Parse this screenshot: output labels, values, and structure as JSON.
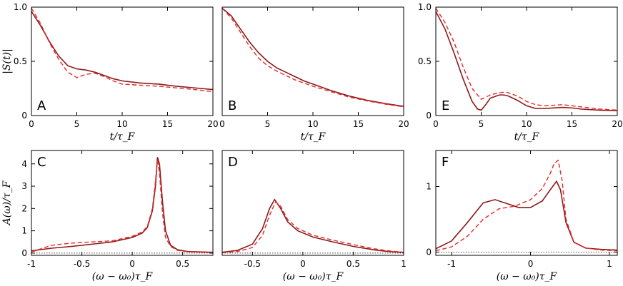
{
  "chart_data": [
    {
      "panel": "A",
      "type": "line",
      "xlabel": "t/τ_F",
      "ylabel": "|S(t)|",
      "xlim": [
        0,
        20
      ],
      "ylim": [
        0,
        1.0
      ],
      "xticks": [
        0,
        5,
        10,
        15,
        20
      ],
      "xticklabels": [
        "0",
        "5",
        "10",
        "15",
        "20"
      ],
      "yticks": [
        0,
        0.5,
        1.0
      ],
      "yticklabels": [
        "0",
        "0.5",
        "1.0"
      ],
      "series": [
        {
          "style": "solid",
          "color": "#8b1a1a",
          "x": [
            0,
            1,
            2,
            3,
            4,
            5,
            6,
            7,
            8,
            9,
            10,
            12,
            14,
            16,
            18,
            20
          ],
          "y": [
            0.96,
            0.83,
            0.68,
            0.55,
            0.46,
            0.43,
            0.42,
            0.4,
            0.37,
            0.34,
            0.32,
            0.3,
            0.29,
            0.27,
            0.255,
            0.24
          ]
        },
        {
          "style": "dashed",
          "color": "#e8262a",
          "x": [
            0,
            1,
            2,
            3,
            4,
            5,
            6,
            7,
            8,
            9,
            10,
            12,
            14,
            16,
            18,
            20
          ],
          "y": [
            0.99,
            0.85,
            0.67,
            0.52,
            0.4,
            0.35,
            0.38,
            0.39,
            0.36,
            0.32,
            0.29,
            0.28,
            0.27,
            0.255,
            0.24,
            0.22
          ]
        }
      ]
    },
    {
      "panel": "B",
      "type": "line",
      "xlabel": "t/τ_F",
      "ylabel": "",
      "xlim": [
        0,
        20
      ],
      "ylim": [
        0,
        1.0
      ],
      "xticks": [
        0,
        5,
        10,
        15,
        20
      ],
      "xticklabels": [
        "0",
        "5",
        "10",
        "15",
        "20"
      ],
      "yticks": [],
      "yticklabels": [],
      "series": [
        {
          "style": "solid",
          "color": "#8b1a1a",
          "x": [
            0,
            1,
            2,
            3,
            4,
            5,
            6,
            7,
            8,
            9,
            10,
            12,
            14,
            16,
            18,
            20
          ],
          "y": [
            0.99,
            0.92,
            0.8,
            0.68,
            0.58,
            0.5,
            0.44,
            0.4,
            0.36,
            0.32,
            0.29,
            0.23,
            0.18,
            0.14,
            0.11,
            0.085
          ]
        },
        {
          "style": "dashed",
          "color": "#e8262a",
          "x": [
            0,
            1,
            2,
            3,
            4,
            5,
            6,
            7,
            8,
            9,
            10,
            12,
            14,
            16,
            18,
            20
          ],
          "y": [
            0.99,
            0.9,
            0.77,
            0.64,
            0.53,
            0.46,
            0.41,
            0.37,
            0.33,
            0.3,
            0.27,
            0.22,
            0.17,
            0.135,
            0.105,
            0.08
          ]
        }
      ]
    },
    {
      "panel": "E",
      "type": "line",
      "xlabel": "t/τ_F",
      "ylabel": "",
      "xlim": [
        0,
        20
      ],
      "ylim": [
        0,
        1.0
      ],
      "xticks": [
        0,
        5,
        10,
        15,
        20
      ],
      "xticklabels": [
        "0",
        "5",
        "10",
        "15",
        "20"
      ],
      "yticks": [
        0,
        0.5,
        1.0
      ],
      "yticklabels": [
        "0",
        "0.5",
        "1.0"
      ],
      "series": [
        {
          "style": "solid",
          "color": "#8b1a1a",
          "x": [
            0,
            1,
            2,
            3,
            4,
            4.6,
            5,
            5.5,
            6,
            7,
            7.5,
            8,
            9,
            10,
            11,
            12,
            13,
            14,
            15,
            16,
            18,
            20
          ],
          "y": [
            0.96,
            0.8,
            0.58,
            0.34,
            0.13,
            0.06,
            0.05,
            0.1,
            0.16,
            0.19,
            0.19,
            0.18,
            0.14,
            0.09,
            0.065,
            0.065,
            0.07,
            0.075,
            0.07,
            0.06,
            0.05,
            0.045
          ]
        },
        {
          "style": "dashed",
          "color": "#e8262a",
          "x": [
            0,
            1,
            2,
            3,
            4,
            5,
            6,
            7,
            7.5,
            8,
            9,
            10,
            11,
            12,
            13,
            14,
            15,
            16,
            18,
            20
          ],
          "y": [
            0.99,
            0.86,
            0.68,
            0.45,
            0.25,
            0.15,
            0.19,
            0.21,
            0.215,
            0.21,
            0.18,
            0.13,
            0.1,
            0.09,
            0.095,
            0.1,
            0.09,
            0.08,
            0.06,
            0.05
          ]
        }
      ]
    },
    {
      "panel": "C",
      "type": "line",
      "xlabel": "(ω − ω₀)τ_F",
      "ylabel": "A(ω)/τ_F",
      "xlim": [
        -1,
        0.8
      ],
      "ylim": [
        -0.1,
        4.6
      ],
      "xticks": [
        -1,
        -0.5,
        0,
        0.5
      ],
      "xticklabels": [
        "-1",
        "-0.5",
        "0",
        "0.5"
      ],
      "yticks": [
        0,
        1,
        2,
        3,
        4
      ],
      "yticklabels": [
        "0",
        "1",
        "2",
        "3",
        "4"
      ],
      "series": [
        {
          "style": "solid",
          "color": "#8b1a1a",
          "x": [
            -1,
            -0.8,
            -0.6,
            -0.4,
            -0.2,
            0,
            0.1,
            0.15,
            0.2,
            0.23,
            0.25,
            0.27,
            0.3,
            0.33,
            0.38,
            0.45,
            0.55,
            0.7,
            0.8
          ],
          "y": [
            0.1,
            0.22,
            0.3,
            0.4,
            0.5,
            0.7,
            0.9,
            1.15,
            1.9,
            3.0,
            4.3,
            4.0,
            2.3,
            1.0,
            0.35,
            0.15,
            0.07,
            0.05,
            0.04
          ]
        },
        {
          "style": "dashed",
          "color": "#e8262a",
          "x": [
            -1,
            -0.8,
            -0.6,
            -0.4,
            -0.2,
            0,
            0.1,
            0.15,
            0.2,
            0.23,
            0.25,
            0.27,
            0.3,
            0.33,
            0.38,
            0.45,
            0.55,
            0.7,
            0.8
          ],
          "y": [
            0.05,
            0.35,
            0.45,
            0.5,
            0.55,
            0.75,
            0.95,
            1.2,
            2.0,
            3.2,
            4.2,
            3.6,
            1.8,
            0.7,
            0.3,
            0.12,
            0.06,
            0.04,
            0.03
          ]
        }
      ]
    },
    {
      "panel": "D",
      "type": "line",
      "xlabel": "(ω − ω₀)τ_F",
      "ylabel": "",
      "xlim": [
        -0.8,
        1
      ],
      "ylim": [
        -0.1,
        4.6
      ],
      "xticks": [
        -0.5,
        0,
        0.5,
        1
      ],
      "xticklabels": [
        "-0.5",
        "0",
        "0.5",
        "1"
      ],
      "yticks": [],
      "yticklabels": [],
      "series": [
        {
          "style": "solid",
          "color": "#8b1a1a",
          "x": [
            -0.8,
            -0.65,
            -0.5,
            -0.4,
            -0.33,
            -0.28,
            -0.22,
            -0.15,
            -0.05,
            0.1,
            0.3,
            0.5,
            0.7,
            0.85,
            1.0
          ],
          "y": [
            0.04,
            0.12,
            0.4,
            1.1,
            2.0,
            2.4,
            2.0,
            1.4,
            1.0,
            0.72,
            0.5,
            0.3,
            0.15,
            0.07,
            0.03
          ]
        },
        {
          "style": "dashed",
          "color": "#e8262a",
          "x": [
            -0.8,
            -0.65,
            -0.5,
            -0.4,
            -0.33,
            -0.27,
            -0.22,
            -0.15,
            -0.05,
            0.1,
            0.3,
            0.5,
            0.7,
            0.85,
            1.0
          ],
          "y": [
            0.02,
            0.07,
            0.25,
            0.8,
            1.7,
            2.3,
            2.1,
            1.5,
            1.1,
            0.8,
            0.58,
            0.38,
            0.2,
            0.1,
            0.04
          ]
        }
      ]
    },
    {
      "panel": "F",
      "type": "line",
      "xlabel": "(ω − ω₀)τ_F",
      "ylabel": "",
      "xlim": [
        -1.2,
        1.1
      ],
      "ylim": [
        -0.05,
        1.55
      ],
      "xticks": [
        -1,
        0,
        1
      ],
      "xticklabels": [
        "-1",
        "0",
        "1"
      ],
      "yticks": [
        0,
        1
      ],
      "yticklabels": [
        "0",
        "1"
      ],
      "series": [
        {
          "style": "solid",
          "color": "#8b1a1a",
          "x": [
            -1.2,
            -1.0,
            -0.8,
            -0.6,
            -0.45,
            -0.3,
            -0.15,
            0,
            0.15,
            0.25,
            0.33,
            0.38,
            0.45,
            0.55,
            0.7,
            0.9,
            1.1
          ],
          "y": [
            0.05,
            0.17,
            0.45,
            0.75,
            0.8,
            0.74,
            0.68,
            0.68,
            0.78,
            0.95,
            1.08,
            0.95,
            0.45,
            0.15,
            0.06,
            0.04,
            0.03
          ]
        },
        {
          "style": "dashed",
          "color": "#e8262a",
          "x": [
            -1.2,
            -1.0,
            -0.8,
            -0.6,
            -0.4,
            -0.2,
            0,
            0.15,
            0.25,
            0.3,
            0.35,
            0.4,
            0.45,
            0.55,
            0.7,
            0.9,
            1.1
          ],
          "y": [
            0.02,
            0.08,
            0.24,
            0.5,
            0.66,
            0.7,
            0.8,
            0.97,
            1.2,
            1.35,
            1.4,
            1.1,
            0.5,
            0.15,
            0.06,
            0.03,
            0.02
          ]
        }
      ]
    }
  ]
}
